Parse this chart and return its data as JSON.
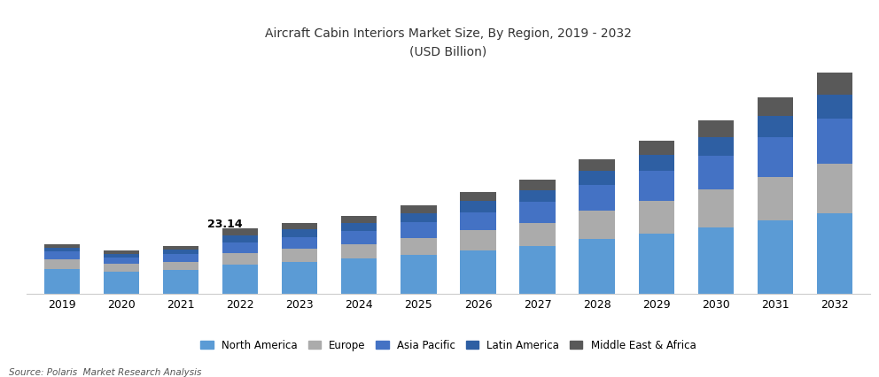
{
  "title_line1": "Aircraft Cabin Interiors Market Size, By Region, 2019 - 2032",
  "title_line2": "(USD Billion)",
  "source": "Source: Polaris  Market Research Analysis",
  "years": [
    2019,
    2020,
    2021,
    2022,
    2023,
    2024,
    2025,
    2026,
    2027,
    2028,
    2029,
    2030,
    2031,
    2032
  ],
  "regions": [
    "North America",
    "Europe",
    "Asia Pacific",
    "Latin America",
    "Middle East & Africa"
  ],
  "annotation_year": 2022,
  "annotation_value": "23.14",
  "data": {
    "North America": [
      9.0,
      7.8,
      8.5,
      10.5,
      11.5,
      12.5,
      14.0,
      15.5,
      17.0,
      19.5,
      21.5,
      23.5,
      26.0,
      28.5
    ],
    "Europe": [
      3.2,
      2.8,
      3.0,
      4.0,
      4.5,
      5.0,
      5.8,
      7.0,
      8.0,
      10.0,
      11.5,
      13.5,
      15.5,
      17.5
    ],
    "Asia Pacific": [
      2.8,
      2.4,
      2.7,
      3.8,
      4.2,
      4.7,
      5.5,
      6.5,
      7.5,
      9.0,
      10.5,
      12.0,
      14.0,
      16.0
    ],
    "Latin America": [
      1.4,
      1.2,
      1.4,
      2.4,
      2.6,
      2.9,
      3.3,
      3.8,
      4.3,
      5.0,
      5.8,
      6.5,
      7.5,
      8.5
    ],
    "Middle East & Africa": [
      1.3,
      1.1,
      1.3,
      2.44,
      2.2,
      2.5,
      2.8,
      3.2,
      3.7,
      4.3,
      5.0,
      5.8,
      6.7,
      7.7
    ]
  },
  "colors": {
    "North America": "#5B9BD5",
    "Europe": "#ABABAB",
    "Asia Pacific": "#4472C4",
    "Latin America": "#2E5FA3",
    "Middle East & Africa": "#595959"
  },
  "ylim": [
    0,
    80
  ],
  "bar_width": 0.6,
  "title_fontsize": 10,
  "tick_fontsize": 9,
  "legend_fontsize": 8.5
}
